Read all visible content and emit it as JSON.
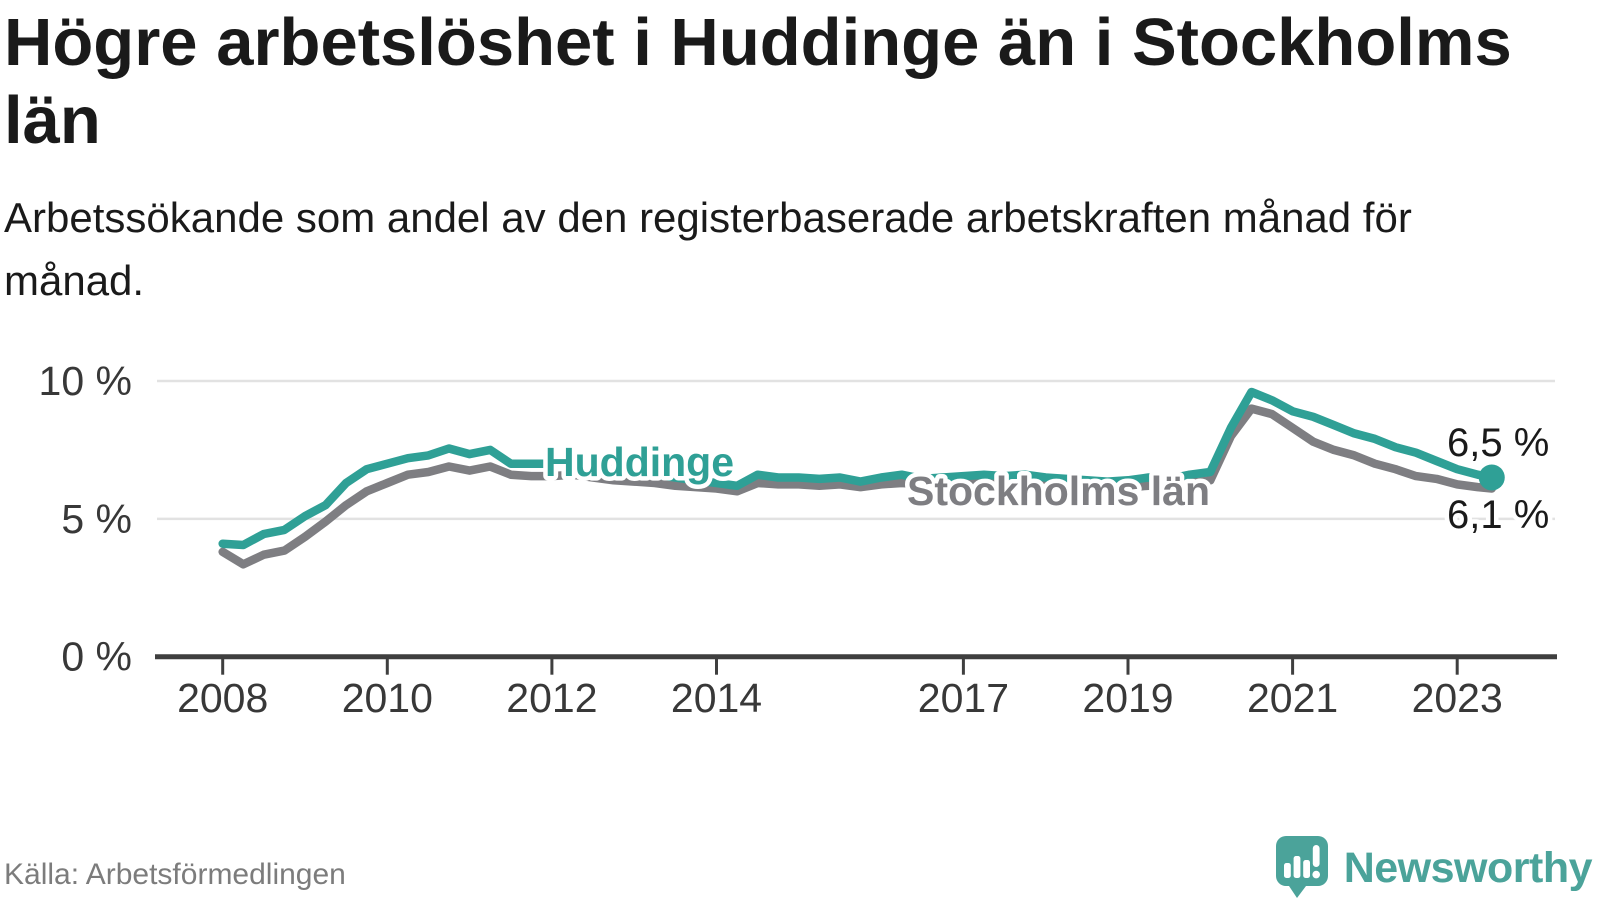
{
  "header": {
    "title": "Högre arbetslöshet i Huddinge än i Stockholms län",
    "subtitle": "Arbetssökande som andel av den registerbaserade arbetskraften månad för månad."
  },
  "footer": {
    "source": "Källa: Arbetsförmedlingen",
    "brand_name": "Newsworthy"
  },
  "colors": {
    "huddinge": "#2fa096",
    "stockholm": "#7e7e82",
    "axis": "#3f3f3f",
    "grid": "#e2e2e2",
    "tick_text": "#383838",
    "value_text": "#1a1a1a",
    "halo": "#ffffff",
    "logo_teal": "#4ba39a"
  },
  "chart_data": {
    "type": "line",
    "unit": "%",
    "grid": true,
    "xlim": [
      2007.8,
      2023.6
    ],
    "ylim": [
      0,
      10.5
    ],
    "xticks": [
      {
        "v": 2008,
        "label": "2008"
      },
      {
        "v": 2010,
        "label": "2010"
      },
      {
        "v": 2012,
        "label": "2012"
      },
      {
        "v": 2014,
        "label": "2014"
      },
      {
        "v": 2017,
        "label": "2017"
      },
      {
        "v": 2019,
        "label": "2019"
      },
      {
        "v": 2021,
        "label": "2021"
      },
      {
        "v": 2023,
        "label": "2023"
      }
    ],
    "yticks": [
      {
        "v": 0,
        "label": "0 %"
      },
      {
        "v": 5,
        "label": "5 %"
      },
      {
        "v": 10,
        "label": "10 %"
      }
    ],
    "x": [
      2008,
      2008.25,
      2008.5,
      2008.75,
      2009,
      2009.25,
      2009.5,
      2009.75,
      2010,
      2010.25,
      2010.5,
      2010.75,
      2011,
      2011.25,
      2011.5,
      2011.75,
      2012,
      2012.25,
      2012.5,
      2012.75,
      2013,
      2013.25,
      2013.5,
      2013.75,
      2014,
      2014.25,
      2014.5,
      2014.75,
      2015,
      2015.25,
      2015.5,
      2015.75,
      2016,
      2016.25,
      2016.5,
      2016.75,
      2017,
      2017.25,
      2017.5,
      2017.75,
      2018,
      2018.25,
      2018.5,
      2018.75,
      2019,
      2019.25,
      2019.5,
      2019.75,
      2020,
      2020.25,
      2020.5,
      2020.75,
      2021,
      2021.25,
      2021.5,
      2021.75,
      2022,
      2022.25,
      2022.5,
      2022.75,
      2023,
      2023.25,
      2023.42
    ],
    "series": [
      {
        "name": "Huddinge",
        "end_label": "6,5 %",
        "end_dot": true,
        "values": [
          4.1,
          4.05,
          4.45,
          4.6,
          5.1,
          5.5,
          6.3,
          6.8,
          7.0,
          7.2,
          7.3,
          7.55,
          7.35,
          7.5,
          7.0,
          7.0,
          7.0,
          7.0,
          6.9,
          6.8,
          6.75,
          6.6,
          6.5,
          6.4,
          6.3,
          6.2,
          6.6,
          6.5,
          6.5,
          6.45,
          6.5,
          6.35,
          6.5,
          6.6,
          6.45,
          6.5,
          6.55,
          6.6,
          6.55,
          6.6,
          6.5,
          6.45,
          6.4,
          6.35,
          6.4,
          6.5,
          6.45,
          6.6,
          6.7,
          8.3,
          9.6,
          9.3,
          8.9,
          8.7,
          8.4,
          8.1,
          7.9,
          7.6,
          7.4,
          7.1,
          6.8,
          6.6,
          6.5
        ]
      },
      {
        "name": "Stockholms län",
        "end_label": "6,1 %",
        "end_dot": false,
        "values": [
          3.8,
          3.35,
          3.7,
          3.85,
          4.35,
          4.9,
          5.5,
          6.0,
          6.3,
          6.6,
          6.7,
          6.9,
          6.75,
          6.9,
          6.6,
          6.55,
          6.55,
          6.6,
          6.5,
          6.4,
          6.35,
          6.3,
          6.2,
          6.15,
          6.1,
          6.0,
          6.3,
          6.25,
          6.25,
          6.2,
          6.25,
          6.15,
          6.25,
          6.3,
          6.25,
          6.3,
          6.3,
          6.35,
          6.3,
          6.3,
          6.25,
          6.2,
          6.15,
          6.1,
          6.15,
          6.2,
          6.2,
          6.3,
          6.4,
          8.0,
          9.0,
          8.8,
          8.3,
          7.8,
          7.5,
          7.3,
          7.0,
          6.8,
          6.55,
          6.45,
          6.25,
          6.15,
          6.1
        ]
      }
    ]
  }
}
